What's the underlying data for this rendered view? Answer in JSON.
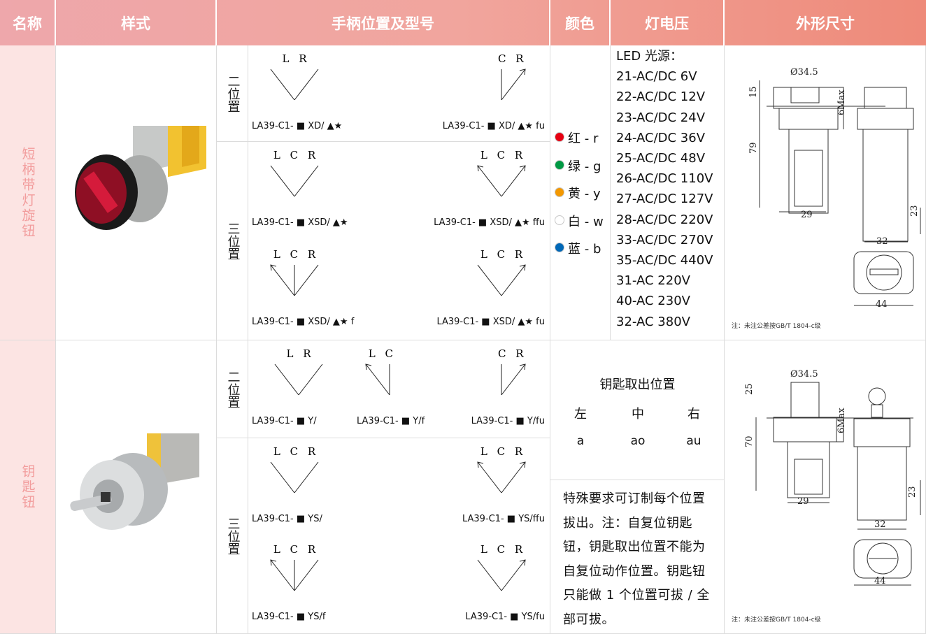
{
  "header": [
    "名称",
    "样式",
    "手柄位置及型号",
    "颜色",
    "灯电压",
    "外形尺寸"
  ],
  "rows": [
    {
      "name": "短柄带灯旋钮",
      "groups": [
        {
          "label": "二位置",
          "items": [
            {
              "diagram": "L R",
              "model": "LA39-C1- ■ XD/ ▲★"
            },
            {
              "diagram": "C R",
              "model": "LA39-C1- ■ XD/ ▲★ fu"
            }
          ]
        },
        {
          "label": "三位置",
          "items": [
            {
              "diagram": "L C R",
              "model": "LA39-C1- ■ XSD/ ▲★"
            },
            {
              "diagram": "L C R",
              "model": "LA39-C1- ■ XSD/ ▲★ ffu"
            },
            {
              "diagram": "L C R",
              "model": "LA39-C1- ■ XSD/ ▲★ f"
            },
            {
              "diagram": "L C R",
              "model": "LA39-C1- ■ XSD/ ▲★ fu"
            }
          ]
        }
      ],
      "colors": [
        {
          "text": "红 - r",
          "dot": "#e60012"
        },
        {
          "text": "绿 - g",
          "dot": "#009944"
        },
        {
          "text": "黄 - y",
          "dot": "#f39800"
        },
        {
          "text": "白 - w",
          "dot": "#ffffff"
        },
        {
          "text": "蓝 - b",
          "dot": "#0068b7"
        }
      ],
      "voltage": [
        "LED 光源：",
        "21-AC/DC 6V",
        "22-AC/DC 12V",
        "23-AC/DC 24V",
        "24-AC/DC 36V",
        "25-AC/DC 48V",
        "26-AC/DC 110V",
        "27-AC/DC 127V",
        "28-AC/DC 220V",
        "33-AC/DC 270V",
        "35-AC/DC 440V",
        "31-AC 220V",
        "40-AC 230V",
        "32-AC 380V"
      ],
      "dimensions": {
        "labels": [
          "Ø34.5",
          "15",
          "79",
          "6Max",
          "29",
          "23",
          "32",
          "44"
        ],
        "note": "注：未注公差按GB/T 1804-c级"
      }
    },
    {
      "name": "钥匙钮",
      "groups": [
        {
          "label": "二位置",
          "items": [
            {
              "diagram": "L R",
              "model": "LA39-C1- ■ Y/"
            },
            {
              "diagram": "L C",
              "model": "LA39-C1- ■ Y/f"
            },
            {
              "diagram": "C R",
              "model": "LA39-C1- ■ Y/fu"
            }
          ]
        },
        {
          "label": "三位置",
          "items": [
            {
              "diagram": "L C R",
              "model": "LA39-C1- ■ YS/"
            },
            {
              "diagram": "L C R",
              "model": "LA39-C1- ■ YS/ffu"
            },
            {
              "diagram": "L C R",
              "model": "LA39-C1- ■ YS/f"
            },
            {
              "diagram": "L C R",
              "model": "LA39-C1- ■ YS/fu"
            }
          ]
        }
      ],
      "key": {
        "title": "钥匙取出位置",
        "positions": [
          "左",
          "中",
          "右"
        ],
        "codes": [
          "a",
          "ao",
          "au"
        ]
      },
      "remark": "特殊要求可订制每个位置拔出。注：自复位钥匙钮，钥匙取出位置不能为自复位动作位置。钥匙钮只能做 1 个位置可拔 / 全部可拔。",
      "dimensions": {
        "labels": [
          "Ø34.5",
          "25",
          "70",
          "6Max",
          "29",
          "23",
          "32",
          "44"
        ],
        "note": "注：未注公差按GB/T 1804-c级"
      }
    }
  ]
}
